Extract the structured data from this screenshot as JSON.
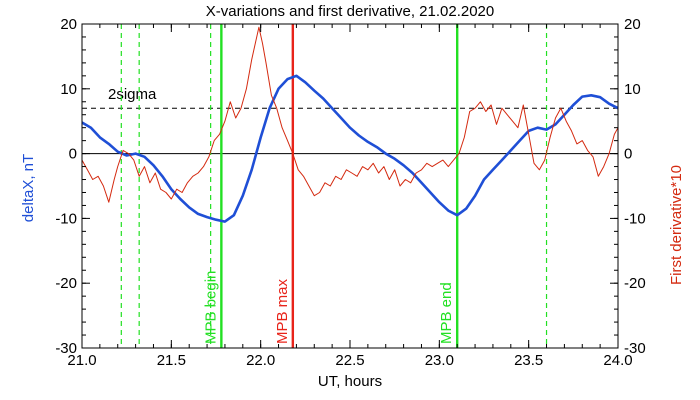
{
  "chart_data": {
    "type": "line",
    "title": "X-variations and first derivative, 21.02.2020",
    "xlabel": "UT, hours",
    "ylabel_left": "deltaX, nT",
    "ylabel_right": "First derivative*10",
    "xlim": [
      21.0,
      24.0
    ],
    "ylim": [
      -30,
      20
    ],
    "x_ticks": [
      "21.0",
      "21.5",
      "22.0",
      "22.5",
      "23.0",
      "23.5",
      "24.0"
    ],
    "y_ticks_left": [
      "20",
      "10",
      "0",
      "-10",
      "-20",
      "-30"
    ],
    "y_ticks_right": [
      "20",
      "10",
      "0",
      "-10",
      "-20",
      "-30"
    ],
    "sigma_level": 7,
    "sigma_label": "2sigma",
    "colors": {
      "deltaX": "#1f4fd6",
      "derivative": "#d42a10",
      "mpb": "#22e022",
      "max": "#e8241a",
      "axes": "#000000",
      "ylabel_left": "#1f4fd6",
      "ylabel_right": "#d42a10"
    },
    "vertical_markers": [
      {
        "x": 21.78,
        "label": "MPB begin",
        "color": "#22e022",
        "style": "solid"
      },
      {
        "x": 22.18,
        "label": "MPB max",
        "color": "#e8241a",
        "style": "solid"
      },
      {
        "x": 23.1,
        "label": "MPB end",
        "color": "#22e022",
        "style": "solid"
      },
      {
        "x": 21.22,
        "label": "",
        "color": "#22e022",
        "style": "dashed"
      },
      {
        "x": 21.32,
        "label": "",
        "color": "#22e022",
        "style": "dashed"
      },
      {
        "x": 21.72,
        "label": "",
        "color": "#22e022",
        "style": "dashed"
      },
      {
        "x": 23.6,
        "label": "",
        "color": "#22e022",
        "style": "dashed"
      }
    ],
    "series": [
      {
        "key": "deltaX",
        "x": [
          21.0,
          21.05,
          21.1,
          21.15,
          21.2,
          21.25,
          21.3,
          21.35,
          21.4,
          21.45,
          21.5,
          21.55,
          21.6,
          21.65,
          21.7,
          21.75,
          21.8,
          21.85,
          21.9,
          21.95,
          22.0,
          22.05,
          22.1,
          22.15,
          22.2,
          22.25,
          22.3,
          22.35,
          22.4,
          22.45,
          22.5,
          22.55,
          22.6,
          22.65,
          22.7,
          22.75,
          22.8,
          22.85,
          22.9,
          22.95,
          23.0,
          23.05,
          23.1,
          23.15,
          23.2,
          23.25,
          23.3,
          23.35,
          23.4,
          23.45,
          23.5,
          23.55,
          23.6,
          23.65,
          23.7,
          23.75,
          23.8,
          23.85,
          23.9,
          23.95,
          24.0
        ],
        "values": [
          4.8,
          4.0,
          2.5,
          1.5,
          0.3,
          -0.3,
          0.0,
          -0.5,
          -1.8,
          -3.5,
          -5.5,
          -7.0,
          -8.3,
          -9.3,
          -9.8,
          -10.2,
          -10.5,
          -9.5,
          -6.5,
          -2.5,
          2.5,
          7.0,
          10.0,
          11.5,
          12.0,
          11.0,
          9.7,
          8.5,
          7.0,
          5.5,
          4.0,
          2.8,
          1.8,
          1.0,
          0.0,
          -0.8,
          -1.8,
          -3.0,
          -4.5,
          -6.0,
          -7.5,
          -8.8,
          -9.5,
          -8.5,
          -6.5,
          -4.0,
          -2.5,
          -1.0,
          0.5,
          2.0,
          3.5,
          4.0,
          3.7,
          4.5,
          6.0,
          7.5,
          8.8,
          9.0,
          8.7,
          7.7,
          7.0
        ]
      },
      {
        "key": "derivative",
        "x": [
          21.0,
          21.03,
          21.06,
          21.09,
          21.12,
          21.15,
          21.18,
          21.2,
          21.23,
          21.26,
          21.29,
          21.32,
          21.35,
          21.38,
          21.41,
          21.44,
          21.47,
          21.5,
          21.53,
          21.56,
          21.59,
          21.62,
          21.65,
          21.68,
          21.71,
          21.74,
          21.77,
          21.8,
          21.83,
          21.86,
          21.89,
          21.92,
          21.95,
          21.97,
          21.99,
          22.01,
          22.03,
          22.06,
          22.09,
          22.12,
          22.15,
          22.18,
          22.21,
          22.24,
          22.27,
          22.3,
          22.33,
          22.36,
          22.39,
          22.42,
          22.45,
          22.48,
          22.51,
          22.54,
          22.57,
          22.6,
          22.63,
          22.66,
          22.69,
          22.72,
          22.75,
          22.78,
          22.81,
          22.84,
          22.87,
          22.9,
          22.93,
          22.96,
          22.99,
          23.02,
          23.05,
          23.08,
          23.11,
          23.14,
          23.17,
          23.2,
          23.23,
          23.26,
          23.29,
          23.32,
          23.35,
          23.38,
          23.41,
          23.44,
          23.47,
          23.5,
          23.53,
          23.56,
          23.59,
          23.62,
          23.65,
          23.68,
          23.71,
          23.74,
          23.77,
          23.8,
          23.83,
          23.86,
          23.89,
          23.92,
          23.95,
          23.98,
          24.0
        ],
        "values": [
          -1.0,
          -2.5,
          -4.0,
          -3.5,
          -5.0,
          -7.5,
          -4.0,
          -2.0,
          0.5,
          0.0,
          -1.0,
          -3.5,
          -2.0,
          -4.5,
          -3.0,
          -5.5,
          -6.0,
          -7.0,
          -5.5,
          -6.0,
          -4.5,
          -3.5,
          -3.0,
          -2.0,
          -0.5,
          2.0,
          3.0,
          5.0,
          8.0,
          5.5,
          7.0,
          10.0,
          14.5,
          17.0,
          19.5,
          17.0,
          14.0,
          9.0,
          7.0,
          4.0,
          2.0,
          0.0,
          -2.5,
          -3.5,
          -5.0,
          -6.5,
          -6.0,
          -4.5,
          -5.0,
          -3.5,
          -4.0,
          -2.5,
          -3.0,
          -3.5,
          -2.0,
          -2.5,
          -1.5,
          -3.0,
          -2.0,
          -4.0,
          -2.5,
          -5.0,
          -4.0,
          -4.5,
          -3.0,
          -2.5,
          -1.5,
          -2.0,
          -1.5,
          -1.0,
          -2.0,
          -1.0,
          0.0,
          2.5,
          6.5,
          7.0,
          8.0,
          6.5,
          7.5,
          4.5,
          7.0,
          6.0,
          5.0,
          4.0,
          7.5,
          3.0,
          -1.5,
          -2.5,
          -1.0,
          2.5,
          5.5,
          7.0,
          5.0,
          3.5,
          1.5,
          2.0,
          0.5,
          -0.5,
          -3.5,
          -2.0,
          0.0,
          3.0,
          4.0
        ]
      }
    ]
  }
}
